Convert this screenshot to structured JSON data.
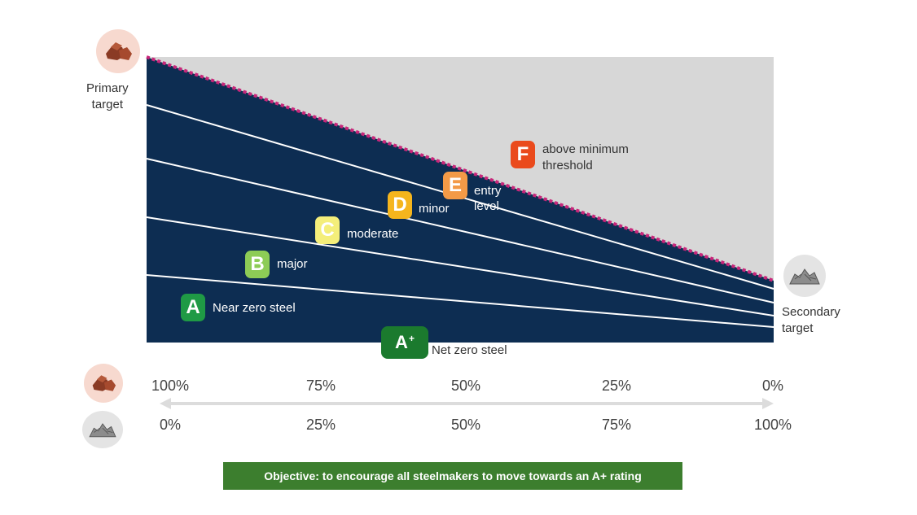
{
  "labels": {
    "primary_target": [
      "Primary",
      "target"
    ],
    "secondary_target": [
      "Secondary",
      "target"
    ]
  },
  "ratings": [
    {
      "grade": "A+",
      "label": "Net zero steel",
      "color": "#1b7a2e"
    },
    {
      "grade": "A",
      "label": "Near zero steel",
      "color": "#1f9a45"
    },
    {
      "grade": "B",
      "label": "major",
      "color": "#8dcc56"
    },
    {
      "grade": "C",
      "label": "moderate",
      "color": "#f4ee7a"
    },
    {
      "grade": "D",
      "label": "minor",
      "color": "#f5b51d"
    },
    {
      "grade": "E",
      "label": "entry level",
      "label_lines": [
        "entry",
        "level"
      ],
      "color": "#f39a47"
    },
    {
      "grade": "F",
      "label": "above minimum threshold",
      "label_lines": [
        "above minimum",
        "threshold"
      ],
      "color": "#ea4a1c"
    }
  ],
  "axis": {
    "primary_scale": [
      "100%",
      "75%",
      "50%",
      "25%",
      "0%"
    ],
    "secondary_scale": [
      "0%",
      "25%",
      "50%",
      "75%",
      "100%"
    ]
  },
  "icons": {
    "primary": "iron-ore-icon",
    "secondary": "scrap-metal-icon"
  },
  "objective": "Objective: to encourage all steelmakers to move towards an A+ rating",
  "colors": {
    "navy": "#0d2d52",
    "grey": "#d7d7d7",
    "threshold": "#c8267a",
    "objective_bg": "#3c7e2e"
  }
}
